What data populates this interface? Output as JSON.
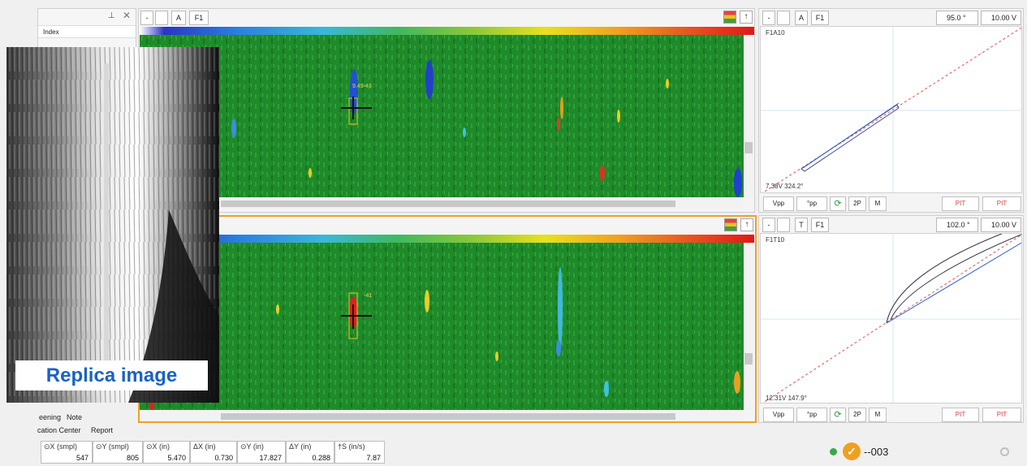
{
  "side_panel": {
    "pin_icon": "pin-icon",
    "close_icon": "close-icon",
    "index_label": "Index",
    "tabs_row1": [
      "eening",
      "Note"
    ],
    "tabs_row2": [
      "cation Center",
      "Report"
    ]
  },
  "cscan_top": {
    "toolbar": [
      "-",
      "",
      "A",
      "F1"
    ],
    "scale_ticks": [
      "",
      "",
      "",
      "",
      ""
    ],
    "indication_label": "9.49-43",
    "palette_icon": "palette-icon",
    "pin_icon": "pin-up-icon"
  },
  "cscan_bottom": {
    "indication_label": "-41",
    "palette_icon": "palette-icon",
    "pin_icon": "pin-up-icon"
  },
  "lissajous_top": {
    "toolbar": [
      "-",
      "",
      "A",
      "F1"
    ],
    "rotation": "95.0 °",
    "span": "10.00 V",
    "title": "F1A10",
    "readout": "7.38V 324.2°",
    "buttons": [
      "Vpp",
      "°pp",
      "",
      "2P",
      "M",
      "PIT",
      "PIT"
    ]
  },
  "lissajous_bottom": {
    "toolbar": [
      "-",
      "",
      "T",
      "F1"
    ],
    "rotation": "102.0 °",
    "span": "10.00 V",
    "title": "F1T10",
    "readout": "12.31V 147.9°",
    "buttons": [
      "Vpp",
      "°pp",
      "",
      "2P",
      "M",
      "PIT",
      "PIT"
    ]
  },
  "replica": {
    "label": "Replica image"
  },
  "measurements": [
    {
      "head": "⊙X (smpl)",
      "value": "547"
    },
    {
      "head": "⊙Y (smpl)",
      "value": "805"
    },
    {
      "head": "⊙X (in)",
      "value": "5.470"
    },
    {
      "head": "ΔX (in)",
      "value": "0.730"
    },
    {
      "head": "⊙Y (in)",
      "value": "17.827"
    },
    {
      "head": "ΔY (in)",
      "value": "0.288"
    },
    {
      "head": "†S (in/s)",
      "value": "7.87"
    }
  ],
  "status": {
    "text": "--003",
    "ok_icon": "check-circle-icon",
    "dot_icon": "green-dot-icon"
  },
  "colors": {
    "accent_orange": "#f0a020",
    "cscan_green": "#1f8a2a",
    "pit_red": "#e04040",
    "replica_blue": "#1a62c4"
  }
}
